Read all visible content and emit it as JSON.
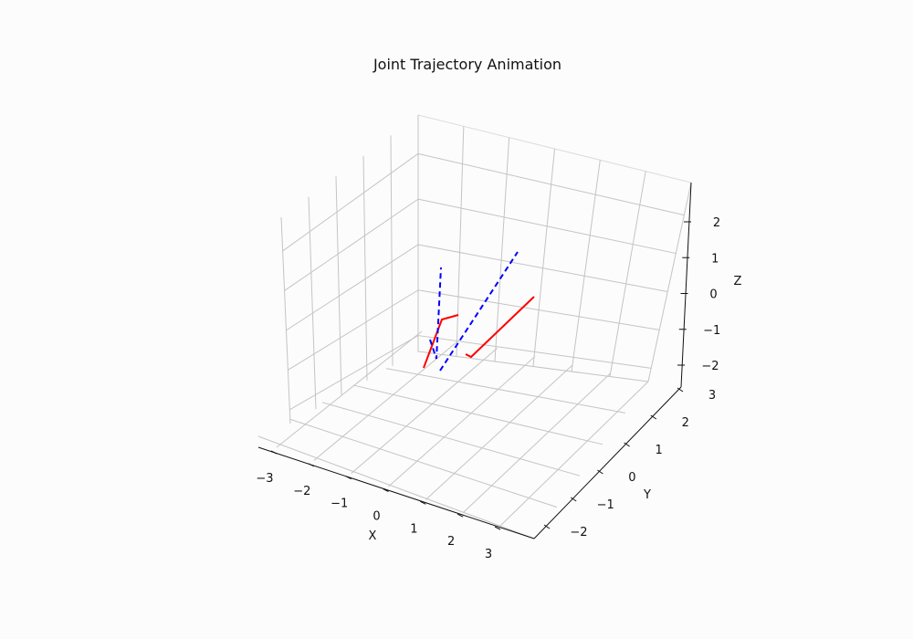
{
  "chart_data": {
    "type": "line",
    "projection": "3d",
    "title": "Joint Trajectory Animation",
    "xlabel": "X",
    "ylabel": "Y",
    "zlabel": "Z",
    "xticks": [
      "−3",
      "−2",
      "−1",
      "0",
      "1",
      "2",
      "3"
    ],
    "yticks": [
      "−2",
      "−1",
      "0",
      "1",
      "2",
      "3"
    ],
    "zticks": [
      "−2",
      "−1",
      "0",
      "1",
      "2"
    ],
    "grid": true,
    "series": [
      {
        "color": "#ff0000",
        "style": "solid"
      },
      {
        "color": "#ff0000",
        "style": "solid"
      },
      {
        "color": "#0000ff",
        "style": "dashed"
      },
      {
        "color": "#0000ff",
        "style": "dashed"
      }
    ]
  }
}
